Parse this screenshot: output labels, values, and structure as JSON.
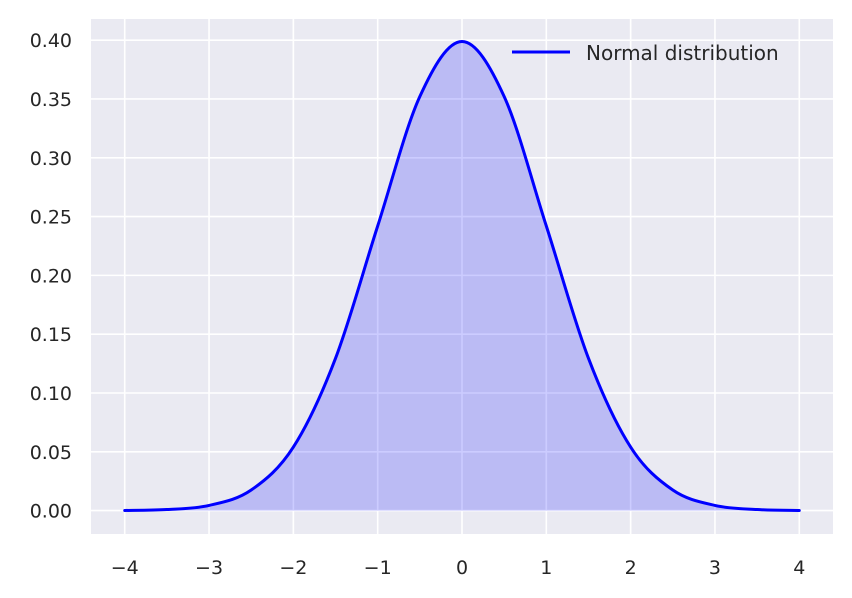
{
  "chart_data": {
    "type": "area",
    "title": "",
    "xlabel": "",
    "ylabel": "",
    "xlim": [
      -4.4,
      4.4
    ],
    "ylim": [
      -0.0199,
      0.418
    ],
    "x_ticks": [
      -4,
      -3,
      -2,
      -1,
      0,
      1,
      2,
      3,
      4
    ],
    "x_tick_labels": [
      "−4",
      "−3",
      "−2",
      "−1",
      "0",
      "1",
      "2",
      "3",
      "4"
    ],
    "y_ticks": [
      0.0,
      0.05,
      0.1,
      0.15,
      0.2,
      0.25,
      0.3,
      0.35,
      0.4
    ],
    "y_tick_labels": [
      "0.00",
      "0.05",
      "0.10",
      "0.15",
      "0.20",
      "0.25",
      "0.30",
      "0.35",
      "0.40"
    ],
    "grid": true,
    "legend_position": "top-right",
    "background_color": "#eaeaf2",
    "grid_color": "#ffffff",
    "series": [
      {
        "name": "Normal distribution",
        "color": "#0000ff",
        "fill_color": "#0000ff",
        "fill_opacity": 0.2,
        "x": [
          -4.0,
          -3.5,
          -3.0,
          -2.5,
          -2.0,
          -1.5,
          -1.0,
          -0.5,
          0.0,
          0.5,
          1.0,
          1.5,
          2.0,
          2.5,
          3.0,
          3.5,
          4.0
        ],
        "y": [
          0.0001,
          0.0009,
          0.0044,
          0.0175,
          0.054,
          0.1295,
          0.242,
          0.3521,
          0.3989,
          0.3521,
          0.242,
          0.1295,
          0.054,
          0.0175,
          0.0044,
          0.0009,
          0.0001
        ]
      }
    ]
  }
}
